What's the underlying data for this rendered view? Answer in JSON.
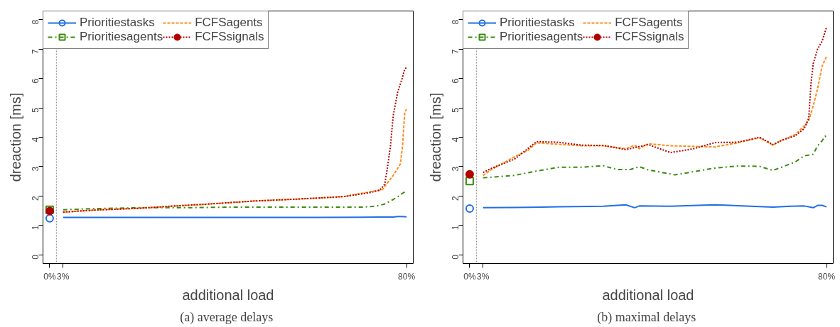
{
  "chart_data": [
    {
      "type": "line",
      "ylabel": "dreaction [ms]",
      "xlabel": "additional load",
      "annotations": [
        "(a)  average delays"
      ],
      "xlim": [
        -1.5,
        81.5
      ],
      "ylim": [
        -0.3,
        8.3
      ],
      "xticks": [
        {
          "value": 0,
          "label": "0%"
        },
        {
          "value": 3,
          "label": "3%"
        },
        {
          "value": 80,
          "label": "80%"
        }
      ],
      "yticks": [
        0,
        1,
        2,
        3,
        4,
        5,
        6,
        7,
        8
      ],
      "grid": false,
      "legend": "top left",
      "ref_lines": [
        {
          "axis": "x",
          "value": 1.5,
          "label": null,
          "color": "#808080",
          "line_style": "dotted"
        }
      ],
      "series": [
        {
          "name": "Prioritiestasks",
          "color": "#1f6fe6",
          "line_style": "solid",
          "x": [
            3,
            20,
            40,
            60,
            74,
            77,
            78,
            79,
            80
          ],
          "values": [
            1.27,
            1.27,
            1.27,
            1.27,
            1.28,
            1.28,
            1.3,
            1.3,
            1.29
          ]
        },
        {
          "type": "scatter",
          "color": "#1f6fe6",
          "marker": "circle",
          "x": [
            0
          ],
          "values": [
            1.24
          ]
        },
        {
          "name": "Prioritiesagents",
          "color": "#3a8a0f",
          "line_style": "dashdot",
          "x": [
            3,
            10,
            20,
            30,
            40,
            50,
            60,
            70,
            73,
            75,
            77,
            78,
            79,
            80
          ],
          "values": [
            1.53,
            1.57,
            1.6,
            1.6,
            1.62,
            1.62,
            1.62,
            1.62,
            1.65,
            1.72,
            1.88,
            1.97,
            2.08,
            2.18
          ]
        },
        {
          "type": "scatter",
          "color": "#3a8a0f",
          "marker": "square",
          "x": [
            0
          ],
          "values": [
            1.53
          ]
        },
        {
          "name": "FCFSagents",
          "color": "#ff8c1a",
          "line_style": "dashed",
          "x": [
            3,
            10,
            20,
            27,
            35,
            46,
            52,
            59,
            66,
            72,
            74.5,
            77,
            78.6,
            79.1,
            79.6,
            80
          ],
          "values": [
            1.45,
            1.52,
            1.58,
            1.65,
            1.72,
            1.83,
            1.87,
            1.92,
            1.98,
            2.15,
            2.2,
            2.7,
            3.08,
            3.71,
            4.86,
            4.95
          ]
        },
        {
          "name": "FCFSsignals",
          "color": "#b20000",
          "line_style": "dotted",
          "x": [
            3,
            10,
            20,
            27,
            35,
            46,
            52,
            59,
            66,
            72,
            74,
            75.1,
            75.7,
            76.4,
            77,
            78,
            79,
            79.5,
            80
          ],
          "values": [
            1.45,
            1.52,
            1.58,
            1.65,
            1.72,
            1.83,
            1.87,
            1.92,
            1.98,
            2.12,
            2.2,
            2.4,
            2.95,
            3.71,
            4.73,
            5.53,
            6.0,
            6.27,
            6.4
          ]
        },
        {
          "type": "scatter",
          "color": "#b20000",
          "marker": "circle_filled",
          "x": [
            0
          ],
          "values": [
            1.49
          ]
        }
      ]
    },
    {
      "type": "line",
      "ylabel": "dreaction [ms]",
      "xlabel": "additional load",
      "annotations": [
        "(b)  maximal delays"
      ],
      "xlim": [
        -1.5,
        81.5
      ],
      "ylim": [
        -0.3,
        8.3
      ],
      "xticks": [
        {
          "value": 0,
          "label": "0%"
        },
        {
          "value": 3,
          "label": "3%"
        },
        {
          "value": 80,
          "label": "80%"
        }
      ],
      "yticks": [
        0,
        1,
        2,
        3,
        4,
        5,
        6,
        7,
        8
      ],
      "grid": false,
      "legend": "top left",
      "ref_lines": [
        {
          "axis": "x",
          "value": 1.5,
          "label": null,
          "color": "#808080",
          "line_style": "dotted"
        }
      ],
      "series": [
        {
          "name": "Prioritiestasks",
          "color": "#1f6fe6",
          "line_style": "solid",
          "x": [
            3,
            10,
            20,
            30,
            35,
            37,
            38,
            45,
            55,
            60,
            68,
            72,
            75,
            77,
            78,
            79,
            80
          ],
          "values": [
            1.6,
            1.61,
            1.63,
            1.65,
            1.7,
            1.6,
            1.66,
            1.65,
            1.7,
            1.67,
            1.62,
            1.65,
            1.66,
            1.6,
            1.68,
            1.68,
            1.63
          ]
        },
        {
          "type": "scatter",
          "color": "#1f6fe6",
          "marker": "circle",
          "x": [
            0
          ],
          "values": [
            1.57
          ]
        },
        {
          "name": "Prioritiesagents",
          "color": "#3a8a0f",
          "line_style": "dashdot",
          "x": [
            3,
            10,
            15,
            20,
            25,
            30,
            33,
            36,
            38,
            40,
            46,
            55,
            60,
            65,
            68,
            73,
            75,
            77,
            78,
            79,
            79.7,
            80
          ],
          "values": [
            2.62,
            2.7,
            2.85,
            2.98,
            2.98,
            3.03,
            2.9,
            2.9,
            3.0,
            2.89,
            2.72,
            2.95,
            3.02,
            3.01,
            2.87,
            3.16,
            3.37,
            3.42,
            3.71,
            3.88,
            4.04,
            3.97
          ]
        },
        {
          "type": "scatter",
          "color": "#3a8a0f",
          "marker": "square",
          "x": [
            0
          ],
          "values": [
            2.51
          ]
        },
        {
          "name": "FCFSagents",
          "color": "#ff8c1a",
          "line_style": "dashed",
          "x": [
            3,
            5,
            10,
            13,
            15,
            20,
            25,
            30,
            35,
            37,
            38,
            40,
            45,
            50,
            55,
            60,
            65,
            68,
            70,
            73,
            75,
            76,
            77,
            78,
            79,
            80
          ],
          "values": [
            2.7,
            2.91,
            3.33,
            3.55,
            3.81,
            3.76,
            3.71,
            3.71,
            3.61,
            3.73,
            3.61,
            3.78,
            3.71,
            3.69,
            3.67,
            3.81,
            3.98,
            3.73,
            3.9,
            4.09,
            4.39,
            4.56,
            5.06,
            5.66,
            6.42,
            6.75
          ]
        },
        {
          "name": "FCFSsignals",
          "color": "#b20000",
          "line_style": "dotted",
          "x": [
            3,
            5,
            10,
            15,
            20,
            25,
            30,
            35,
            40,
            45,
            50,
            55,
            60,
            65,
            68,
            70,
            73,
            75,
            76,
            76.5,
            77,
            78,
            79,
            80
          ],
          "values": [
            2.8,
            2.95,
            3.25,
            3.85,
            3.83,
            3.73,
            3.72,
            3.58,
            3.75,
            3.48,
            3.6,
            3.82,
            3.83,
            4.0,
            3.75,
            3.9,
            4.05,
            4.3,
            4.64,
            5.8,
            6.5,
            7.01,
            7.27,
            7.75
          ]
        },
        {
          "type": "scatter",
          "color": "#b20000",
          "marker": "circle_filled",
          "x": [
            0
          ],
          "values": [
            2.74
          ]
        }
      ]
    }
  ]
}
